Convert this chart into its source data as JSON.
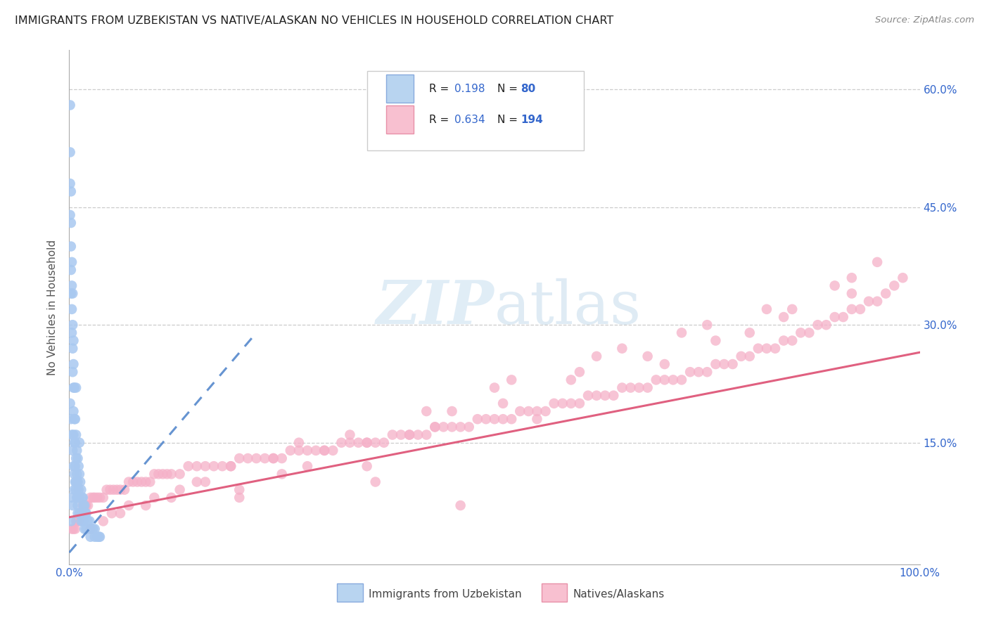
{
  "title": "IMMIGRANTS FROM UZBEKISTAN VS NATIVE/ALASKAN NO VEHICLES IN HOUSEHOLD CORRELATION CHART",
  "source": "Source: ZipAtlas.com",
  "ylabel": "No Vehicles in Household",
  "xlim": [
    0.0,
    1.0
  ],
  "ylim": [
    -0.005,
    0.65
  ],
  "ytick_vals": [
    0.15,
    0.3,
    0.45,
    0.6
  ],
  "ytick_labels": [
    "15.0%",
    "30.0%",
    "45.0%",
    "60.0%"
  ],
  "r_uzbek": 0.198,
  "n_uzbek": 80,
  "r_native": 0.634,
  "n_native": 194,
  "color_uzbek": "#a8c8f0",
  "color_native": "#f5b0c8",
  "line_color_uzbek": "#5588cc",
  "line_color_native": "#e06080",
  "legend_text_color": "#3366cc",
  "legend_label_color": "#222222",
  "watermark_color": "#c8dff0",
  "uzbek_x": [
    0.001,
    0.001,
    0.001,
    0.001,
    0.002,
    0.002,
    0.002,
    0.002,
    0.002,
    0.003,
    0.003,
    0.003,
    0.003,
    0.004,
    0.004,
    0.004,
    0.004,
    0.005,
    0.005,
    0.005,
    0.005,
    0.005,
    0.006,
    0.006,
    0.006,
    0.007,
    0.007,
    0.007,
    0.008,
    0.008,
    0.008,
    0.009,
    0.009,
    0.01,
    0.01,
    0.01,
    0.011,
    0.011,
    0.012,
    0.012,
    0.013,
    0.014,
    0.015,
    0.016,
    0.017,
    0.018,
    0.019,
    0.02,
    0.022,
    0.024,
    0.026,
    0.028,
    0.03,
    0.033,
    0.036,
    0.001,
    0.002,
    0.003,
    0.004,
    0.005,
    0.006,
    0.007,
    0.008,
    0.009,
    0.01,
    0.012,
    0.014,
    0.016,
    0.018,
    0.02,
    0.025,
    0.03,
    0.035,
    0.012,
    0.008,
    0.003,
    0.004,
    0.002,
    0.006,
    0.01
  ],
  "uzbek_y": [
    0.58,
    0.52,
    0.48,
    0.44,
    0.47,
    0.43,
    0.4,
    0.37,
    0.34,
    0.38,
    0.35,
    0.32,
    0.29,
    0.34,
    0.3,
    0.27,
    0.24,
    0.28,
    0.25,
    0.22,
    0.19,
    0.16,
    0.22,
    0.18,
    0.15,
    0.18,
    0.15,
    0.12,
    0.16,
    0.13,
    0.1,
    0.14,
    0.11,
    0.13,
    0.1,
    0.08,
    0.12,
    0.09,
    0.11,
    0.08,
    0.1,
    0.09,
    0.08,
    0.08,
    0.07,
    0.07,
    0.06,
    0.06,
    0.05,
    0.05,
    0.04,
    0.04,
    0.04,
    0.03,
    0.03,
    0.2,
    0.18,
    0.16,
    0.14,
    0.12,
    0.11,
    0.1,
    0.09,
    0.08,
    0.07,
    0.06,
    0.05,
    0.05,
    0.04,
    0.04,
    0.03,
    0.03,
    0.03,
    0.15,
    0.22,
    0.08,
    0.07,
    0.05,
    0.09,
    0.06
  ],
  "native_x": [
    0.003,
    0.005,
    0.007,
    0.008,
    0.009,
    0.01,
    0.011,
    0.012,
    0.013,
    0.014,
    0.015,
    0.016,
    0.017,
    0.018,
    0.019,
    0.02,
    0.022,
    0.025,
    0.028,
    0.03,
    0.033,
    0.036,
    0.04,
    0.044,
    0.048,
    0.052,
    0.056,
    0.06,
    0.065,
    0.07,
    0.075,
    0.08,
    0.085,
    0.09,
    0.095,
    0.1,
    0.105,
    0.11,
    0.115,
    0.12,
    0.13,
    0.14,
    0.15,
    0.16,
    0.17,
    0.18,
    0.19,
    0.2,
    0.21,
    0.22,
    0.23,
    0.24,
    0.25,
    0.26,
    0.27,
    0.28,
    0.29,
    0.3,
    0.31,
    0.32,
    0.33,
    0.34,
    0.35,
    0.36,
    0.37,
    0.38,
    0.39,
    0.4,
    0.41,
    0.42,
    0.43,
    0.44,
    0.45,
    0.46,
    0.47,
    0.48,
    0.49,
    0.5,
    0.51,
    0.52,
    0.53,
    0.54,
    0.55,
    0.56,
    0.57,
    0.58,
    0.59,
    0.6,
    0.61,
    0.62,
    0.63,
    0.64,
    0.65,
    0.66,
    0.67,
    0.68,
    0.69,
    0.7,
    0.71,
    0.72,
    0.73,
    0.74,
    0.75,
    0.76,
    0.77,
    0.78,
    0.79,
    0.8,
    0.81,
    0.82,
    0.83,
    0.84,
    0.85,
    0.86,
    0.87,
    0.88,
    0.89,
    0.9,
    0.91,
    0.92,
    0.93,
    0.94,
    0.95,
    0.96,
    0.97,
    0.98,
    0.05,
    0.1,
    0.15,
    0.2,
    0.25,
    0.3,
    0.35,
    0.4,
    0.45,
    0.5,
    0.55,
    0.6,
    0.65,
    0.7,
    0.75,
    0.8,
    0.85,
    0.9,
    0.95,
    0.07,
    0.13,
    0.2,
    0.28,
    0.35,
    0.43,
    0.51,
    0.59,
    0.68,
    0.76,
    0.84,
    0.92,
    0.04,
    0.09,
    0.16,
    0.24,
    0.33,
    0.42,
    0.52,
    0.62,
    0.72,
    0.82,
    0.92,
    0.025,
    0.06,
    0.12,
    0.19,
    0.27,
    0.36,
    0.46
  ],
  "native_y": [
    0.04,
    0.04,
    0.04,
    0.05,
    0.05,
    0.05,
    0.05,
    0.06,
    0.06,
    0.06,
    0.06,
    0.07,
    0.07,
    0.07,
    0.07,
    0.07,
    0.07,
    0.08,
    0.08,
    0.08,
    0.08,
    0.08,
    0.08,
    0.09,
    0.09,
    0.09,
    0.09,
    0.09,
    0.09,
    0.1,
    0.1,
    0.1,
    0.1,
    0.1,
    0.1,
    0.11,
    0.11,
    0.11,
    0.11,
    0.11,
    0.11,
    0.12,
    0.12,
    0.12,
    0.12,
    0.12,
    0.12,
    0.13,
    0.13,
    0.13,
    0.13,
    0.13,
    0.13,
    0.14,
    0.14,
    0.14,
    0.14,
    0.14,
    0.14,
    0.15,
    0.15,
    0.15,
    0.15,
    0.15,
    0.15,
    0.16,
    0.16,
    0.16,
    0.16,
    0.16,
    0.17,
    0.17,
    0.17,
    0.17,
    0.17,
    0.18,
    0.18,
    0.18,
    0.18,
    0.18,
    0.19,
    0.19,
    0.19,
    0.19,
    0.2,
    0.2,
    0.2,
    0.2,
    0.21,
    0.21,
    0.21,
    0.21,
    0.22,
    0.22,
    0.22,
    0.22,
    0.23,
    0.23,
    0.23,
    0.23,
    0.24,
    0.24,
    0.24,
    0.25,
    0.25,
    0.25,
    0.26,
    0.26,
    0.27,
    0.27,
    0.27,
    0.28,
    0.28,
    0.29,
    0.29,
    0.3,
    0.3,
    0.31,
    0.31,
    0.32,
    0.32,
    0.33,
    0.33,
    0.34,
    0.35,
    0.36,
    0.06,
    0.08,
    0.1,
    0.09,
    0.11,
    0.14,
    0.12,
    0.16,
    0.19,
    0.22,
    0.18,
    0.24,
    0.27,
    0.25,
    0.3,
    0.29,
    0.32,
    0.35,
    0.38,
    0.07,
    0.09,
    0.08,
    0.12,
    0.15,
    0.17,
    0.2,
    0.23,
    0.26,
    0.28,
    0.31,
    0.34,
    0.05,
    0.07,
    0.1,
    0.13,
    0.16,
    0.19,
    0.23,
    0.26,
    0.29,
    0.32,
    0.36,
    0.04,
    0.06,
    0.08,
    0.12,
    0.15,
    0.1,
    0.07
  ],
  "uzbek_line_x0": 0.0,
  "uzbek_line_x1": 0.22,
  "uzbek_line_y0": 0.01,
  "uzbek_line_y1": 0.29,
  "native_line_x0": 0.0,
  "native_line_x1": 1.0,
  "native_line_y0": 0.055,
  "native_line_y1": 0.265
}
